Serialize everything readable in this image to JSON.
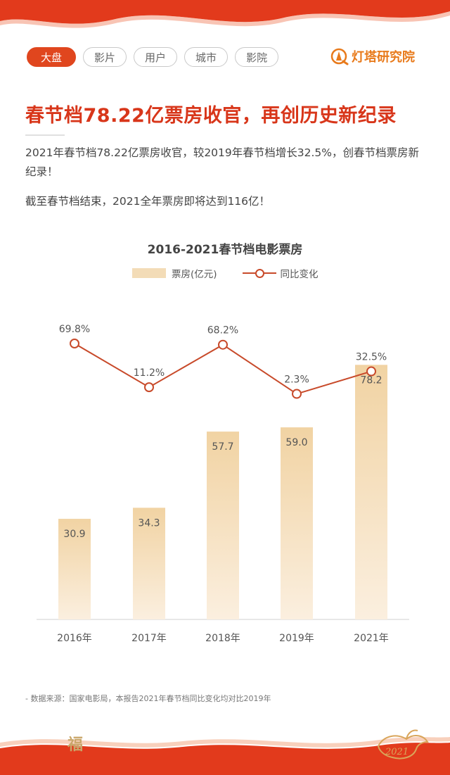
{
  "tabs": [
    {
      "label": "大盘",
      "active": true
    },
    {
      "label": "影片",
      "active": false
    },
    {
      "label": "用户",
      "active": false
    },
    {
      "label": "城市",
      "active": false
    },
    {
      "label": "影院",
      "active": false
    }
  ],
  "brand": {
    "name": "灯塔研究院",
    "color": "#e87a1b"
  },
  "headline": "春节档78.22亿票房收官，再创历史新纪录",
  "paragraphs": [
    "2021年春节档78.22亿票房收官，较2019年春节档增长32.5%，创春节档票房新纪录！",
    "截至春节档结束，2021全年票房即将达到116亿！"
  ],
  "chart_data": {
    "type": "bar",
    "title": "2016-2021春节档电影票房",
    "categories": [
      "2016年",
      "2017年",
      "2018年",
      "2019年",
      "2021年"
    ],
    "series": [
      {
        "name": "票房(亿元)",
        "type": "bar",
        "values": [
          30.9,
          34.3,
          57.7,
          59.0,
          78.2
        ],
        "labels": [
          "30.9",
          "34.3",
          "57.7",
          "59.0",
          "78.2"
        ],
        "color": "#f3dcb7"
      },
      {
        "name": "同比变化",
        "type": "line",
        "values": [
          69.8,
          11.2,
          68.2,
          2.3,
          32.5
        ],
        "labels": [
          "69.8%",
          "11.2%",
          "68.2%",
          "2.3%",
          "32.5%"
        ],
        "color": "#c84a2a"
      }
    ],
    "bar_range": [
      0,
      80
    ],
    "legend_position": "top",
    "grid": false
  },
  "footnote": "- 数据来源：国家电影局，本报告2021年春节档同比变化均对比2019年",
  "decor": {
    "fu": "福",
    "ox": "ox-2021-icon"
  },
  "colors": {
    "accent": "#e0461e",
    "headline": "#d8361a",
    "line": "#c84a2a",
    "bar": "#f3dcb7"
  }
}
